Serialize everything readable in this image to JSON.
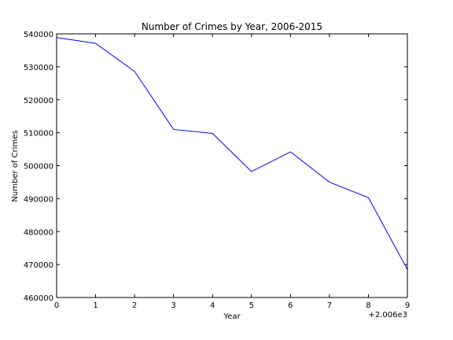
{
  "chart_data": {
    "type": "line",
    "title": "Number of Crimes by Year, 2006-2015",
    "xlabel": "Year",
    "ylabel": "Number of Crimes",
    "x_offset_label": "+2.006e3",
    "x": [
      0,
      1,
      2,
      3,
      4,
      5,
      6,
      7,
      8,
      9
    ],
    "xlim": [
      0,
      9
    ],
    "ylim": [
      460000,
      540000
    ],
    "x_ticks": [
      "0",
      "1",
      "2",
      "3",
      "4",
      "5",
      "6",
      "7",
      "8",
      "9"
    ],
    "y_ticks": [
      "460000",
      "470000",
      "480000",
      "490000",
      "500000",
      "510000",
      "520000",
      "530000",
      "540000"
    ],
    "grid": false,
    "legend": "none",
    "series": [
      {
        "values": [
          538900,
          537100,
          528600,
          511000,
          509800,
          498200,
          504200,
          495000,
          490300,
          468500
        ],
        "color": "#0000ff"
      }
    ]
  }
}
